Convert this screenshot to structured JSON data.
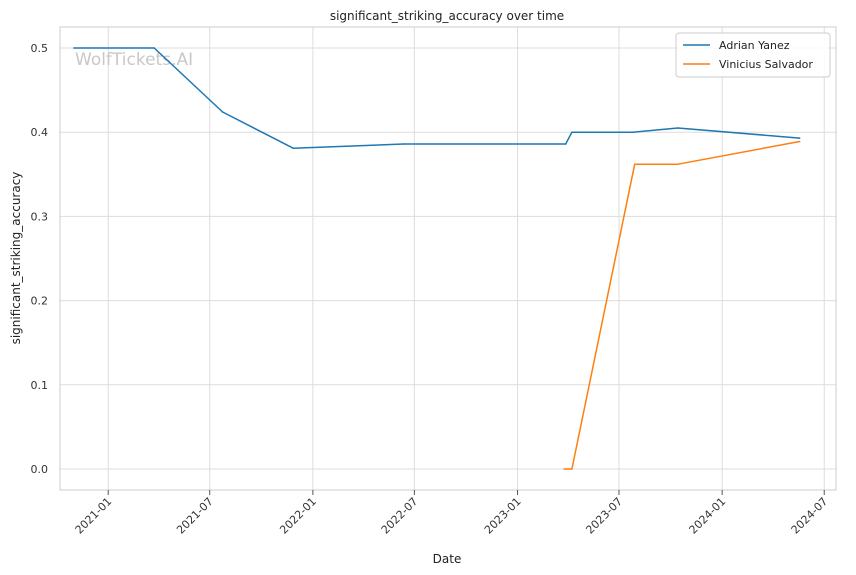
{
  "chart_data": {
    "type": "line",
    "title": "significant_striking_accuracy over time",
    "xlabel": "Date",
    "ylabel": "significant_striking_accuracy",
    "watermark": "WolfTickets.AI",
    "xlim": [
      "2020-10-07",
      "2024-07-22"
    ],
    "ylim": [
      -0.025,
      0.525
    ],
    "x_ticks": [
      "2021-01-01",
      "2021-07-01",
      "2022-01-01",
      "2022-07-01",
      "2023-01-01",
      "2023-07-01",
      "2024-01-01",
      "2024-07-01"
    ],
    "x_tick_labels": [
      "2021-01",
      "2021-07",
      "2022-01",
      "2022-07",
      "2023-01",
      "2023-07",
      "2024-01",
      "2024-07"
    ],
    "y_ticks": [
      0.0,
      0.1,
      0.2,
      0.3,
      0.4,
      0.5
    ],
    "y_tick_labels": [
      "0.0",
      "0.1",
      "0.2",
      "0.3",
      "0.4",
      "0.5"
    ],
    "grid": true,
    "legend_position": "top-right",
    "series": [
      {
        "name": "Adrian Yanez",
        "color": "#1f77b4",
        "points": [
          {
            "x": "2020-11-01",
            "y": 0.5
          },
          {
            "x": "2021-03-24",
            "y": 0.5
          },
          {
            "x": "2021-07-24",
            "y": 0.424
          },
          {
            "x": "2021-11-27",
            "y": 0.381
          },
          {
            "x": "2022-06-12",
            "y": 0.386
          },
          {
            "x": "2023-03-28",
            "y": 0.386
          },
          {
            "x": "2023-04-08",
            "y": 0.4
          },
          {
            "x": "2023-07-26",
            "y": 0.4
          },
          {
            "x": "2023-10-14",
            "y": 0.405
          },
          {
            "x": "2024-05-18",
            "y": 0.393
          }
        ]
      },
      {
        "name": "Vinicius Salvador",
        "color": "#ff7f0e",
        "points": [
          {
            "x": "2023-03-25",
            "y": 0.0
          },
          {
            "x": "2023-04-08",
            "y": 0.0
          },
          {
            "x": "2023-07-29",
            "y": 0.362
          },
          {
            "x": "2023-10-14",
            "y": 0.362
          },
          {
            "x": "2024-05-18",
            "y": 0.389
          }
        ]
      }
    ]
  }
}
